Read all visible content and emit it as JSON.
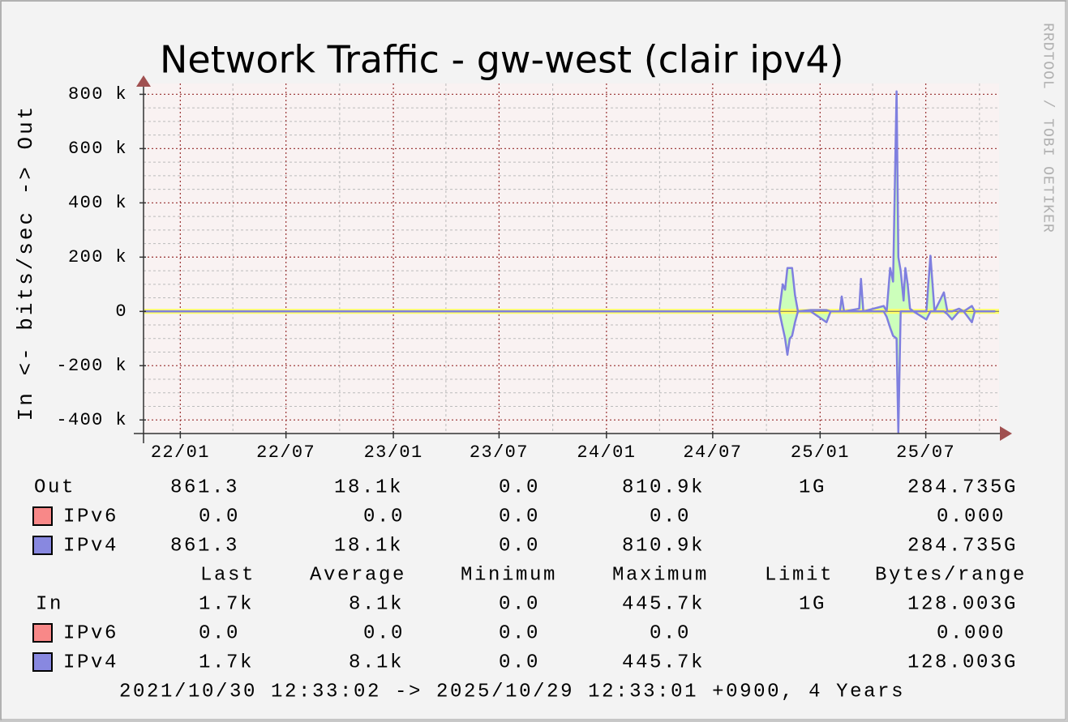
{
  "chart_data": {
    "type": "area",
    "title": "Network Traffic - gw-west (clair ipv4)",
    "y_label": "In <- bits/sec -> Out",
    "watermark": "RRDTOOL / TOBI OETIKER",
    "footer": "2021/10/30 12:33:02 -> 2025/10/29 12:33:01 +0900, 4 Years",
    "ylim": [
      -450000,
      840000
    ],
    "yticks": [
      {
        "value": -400000,
        "label": "-400 k"
      },
      {
        "value": -200000,
        "label": "-200 k"
      },
      0,
      {
        "value": 200000,
        "label": "200 k"
      },
      {
        "value": 400000,
        "label": "400 k"
      },
      {
        "value": 600000,
        "label": "600 k"
      },
      {
        "value": 800000,
        "label": "800 k"
      }
    ],
    "yminor": [
      -350000,
      -300000,
      -250000,
      -150000,
      -100000,
      -50000,
      50000,
      100000,
      150000,
      250000,
      300000,
      350000,
      450000,
      500000,
      550000,
      650000,
      700000,
      750000
    ],
    "xlim": [
      "2021-10-30",
      "2025-10-29"
    ],
    "xticks": [
      {
        "value": "2022-01",
        "label": "22/01"
      },
      {
        "value": "2022-07",
        "label": "22/07"
      },
      {
        "value": "2023-01",
        "label": "23/01"
      },
      {
        "value": "2023-07",
        "label": "23/07"
      },
      {
        "value": "2024-01",
        "label": "24/01"
      },
      {
        "value": "2024-07",
        "label": "24/07"
      },
      {
        "value": "2025-01",
        "label": "25/01"
      },
      {
        "value": "2025-07",
        "label": "25/07"
      }
    ],
    "xminor": [
      "2022-04",
      "2022-10",
      "2023-04",
      "2023-10",
      "2024-04",
      "2024-10",
      "2025-04",
      "2025-10"
    ],
    "grid": true,
    "x": [
      "2021-10-30",
      "2024-10-23",
      "2024-10-29",
      "2024-11-02",
      "2024-11-06",
      "2024-11-10",
      "2024-11-14",
      "2024-11-19",
      "2024-11-24",
      "2024-12-16",
      "2025-01-12",
      "2025-01-19",
      "2025-02-04",
      "2025-02-07",
      "2025-02-11",
      "2025-03-09",
      "2025-03-12",
      "2025-03-16",
      "2025-04-20",
      "2025-04-25",
      "2025-05-01",
      "2025-05-06",
      "2025-05-12",
      "2025-05-15",
      "2025-05-19",
      "2025-05-24",
      "2025-05-27",
      "2025-05-31",
      "2025-06-04",
      "2025-06-10",
      "2025-07-02",
      "2025-07-09",
      "2025-07-16",
      "2025-08-01",
      "2025-08-07",
      "2025-08-15",
      "2025-08-27",
      "2025-09-04",
      "2025-09-18",
      "2025-09-23",
      "2025-10-28"
    ],
    "headers": [
      "Last",
      "Average",
      "Minimum",
      "Maximum",
      "Limit",
      "Bytes/range"
    ],
    "series": [
      {
        "name": "Out",
        "color": "#7f7fdf",
        "fill": "#ccffbb",
        "values": [
          0,
          0,
          100000,
          80000,
          160000,
          160000,
          160000,
          60000,
          0,
          5000,
          5000,
          0,
          0,
          55000,
          0,
          10000,
          120000,
          0,
          20000,
          0,
          160000,
          110000,
          810900,
          200000,
          150000,
          40000,
          160000,
          100000,
          10000,
          0,
          0,
          205000,
          0,
          70000,
          0,
          0,
          10000,
          0,
          20000,
          0,
          0
        ],
        "stats": [
          "861.3",
          "18.1k",
          "0.0",
          "810.9k",
          "1G",
          "284.735G"
        ],
        "protocols": [
          {
            "name": "IPv6",
            "color": "#f88888",
            "stats": [
              "0.0",
              "0.0",
              "0.0",
              "0.0",
              "0.000"
            ]
          },
          {
            "name": "IPv4",
            "color": "#8888e0",
            "stats": [
              "861.3",
              "18.1k",
              "0.0",
              "810.9k",
              "284.735G"
            ]
          }
        ]
      },
      {
        "name": "In",
        "color": "#7f7fdf",
        "fill": "#ccffbb",
        "values": [
          0,
          0,
          -60000,
          -100000,
          -160000,
          -100000,
          -90000,
          -40000,
          0,
          0,
          -40000,
          0,
          0,
          0,
          0,
          0,
          0,
          0,
          0,
          -20000,
          -60000,
          -90000,
          -100000,
          -445700,
          0,
          0,
          0,
          0,
          0,
          0,
          -30000,
          0,
          0,
          0,
          -10000,
          -30000,
          0,
          0,
          -40000,
          0,
          0
        ],
        "stats": [
          "1.7k",
          "8.1k",
          "0.0",
          "445.7k",
          "1G",
          "128.003G"
        ],
        "protocols": [
          {
            "name": "IPv6",
            "color": "#f88888",
            "stats": [
              "0.0",
              "0.0",
              "0.0",
              "0.0",
              "0.000"
            ]
          },
          {
            "name": "IPv4",
            "color": "#8888e0",
            "stats": [
              "1.7k",
              "8.1k",
              "0.0",
              "445.7k",
              "128.003G"
            ]
          }
        ]
      }
    ]
  }
}
